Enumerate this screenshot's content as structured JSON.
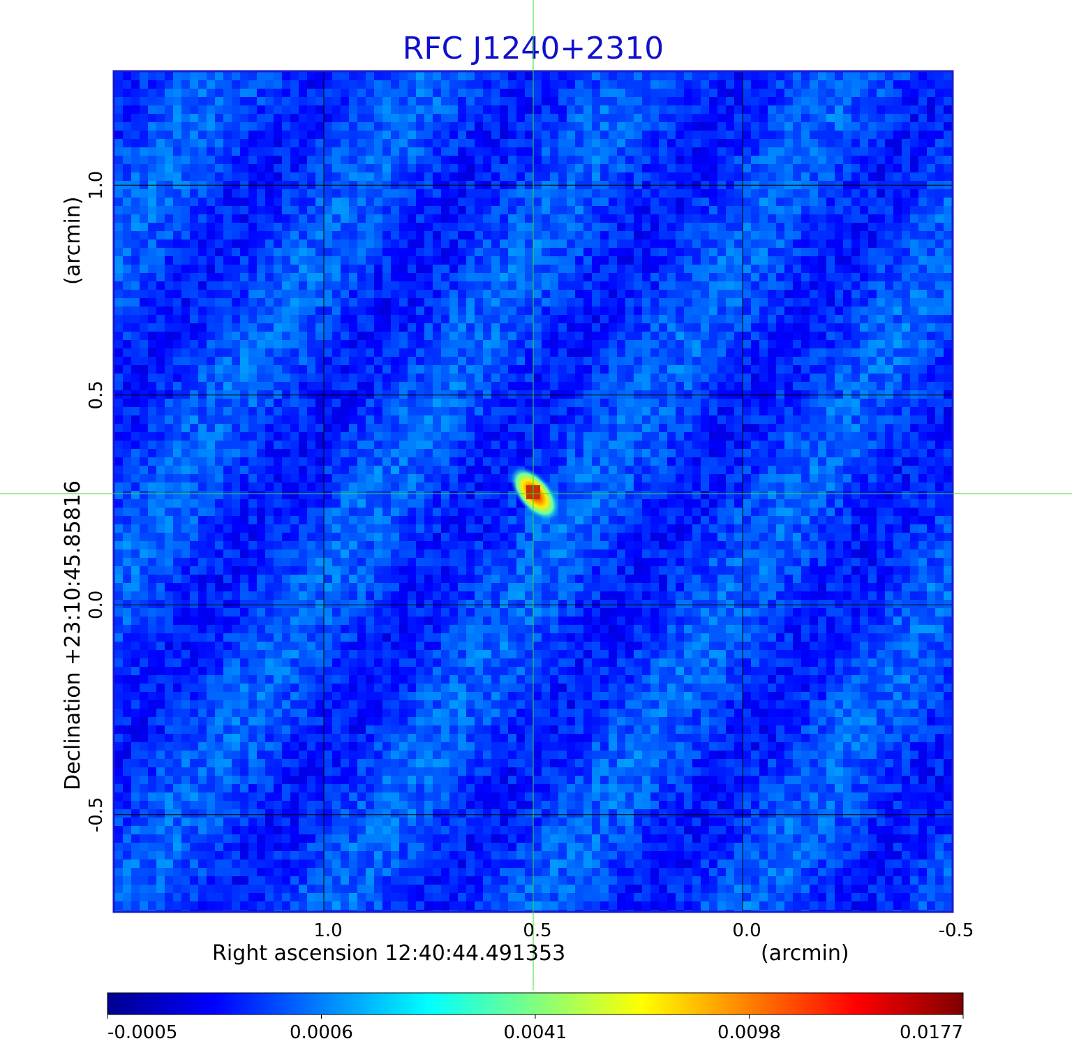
{
  "chart_data": {
    "type": "heatmap",
    "title": "RFC J1240+2310",
    "xlabel": "Right ascension  12:40:44.491353",
    "xunit": "(arcmin)",
    "ylabel": "Declination  +23:10:45.85816",
    "yunit": "(arcmin)",
    "x_axis_reversed": true,
    "xlim": [
      1.5,
      -0.5
    ],
    "ylim": [
      -0.73,
      1.27
    ],
    "x_ticks": [
      1.0,
      0.5,
      0.0,
      -0.5
    ],
    "x_tick_labels": [
      "1.0",
      "0.5",
      "0.0",
      "-0.5"
    ],
    "y_ticks": [
      -0.5,
      0.0,
      0.5,
      1.0
    ],
    "y_tick_labels": [
      "-0.5",
      "0.0",
      "0.5",
      "1.0"
    ],
    "grid": true,
    "crosshair": {
      "x": 0.5,
      "y": 0.265,
      "color": "#33dd33"
    },
    "source_peak": {
      "x": 0.5,
      "y": 0.265,
      "peak_value": 0.0177,
      "description_values": {
        "major_extent_arcmin": 0.12,
        "minor_extent_arcmin": 0.05
      }
    },
    "noise": {
      "min": -0.0005,
      "typical": 0.0004,
      "max": 0.0015
    },
    "colorbar": {
      "colormap": "jet",
      "tick_labels": [
        "-0.0005",
        "0.0006",
        "0.0041",
        "0.0098",
        "0.0177"
      ],
      "tick_values": [
        -0.0005,
        0.0006,
        0.0041,
        0.0098,
        0.0177
      ]
    },
    "colors": {
      "title": "#1010cc",
      "frame": "#1a1acc",
      "grid": "#000000"
    }
  }
}
